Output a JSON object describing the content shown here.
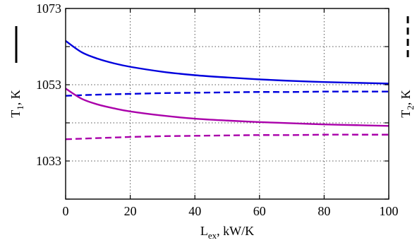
{
  "chart_data": {
    "type": "line",
    "xlabel": {
      "main": "L",
      "sub": "ex",
      "rest": ",  kW/K"
    },
    "ylabel_left": {
      "main": "T",
      "sub": "1",
      "rest": ",  K"
    },
    "ylabel_right": {
      "main": "T",
      "sub": "2",
      "rest": ",  K"
    },
    "xlim": [
      0,
      100
    ],
    "ylim": [
      1023,
      1073
    ],
    "x_ticks": [
      "0",
      "20",
      "40",
      "60",
      "80",
      "100"
    ],
    "y_ticks": [
      "1033",
      "1053",
      "1073"
    ],
    "grid": true,
    "legend": [
      {
        "axis": "left",
        "style": "solid"
      },
      {
        "axis": "right",
        "style": "dashed"
      }
    ],
    "series": [
      {
        "axis": "left",
        "style": "solid",
        "color": "#0000dd",
        "x": [
          0,
          5,
          10,
          15,
          20,
          30,
          40,
          50,
          60,
          70,
          80,
          90,
          100
        ],
        "y": [
          1064.5,
          1061.5,
          1059.8,
          1058.6,
          1057.7,
          1056.4,
          1055.5,
          1054.9,
          1054.4,
          1054.0,
          1053.7,
          1053.5,
          1053.3
        ]
      },
      {
        "axis": "right",
        "style": "dashed",
        "color": "#0000dd",
        "x": [
          0,
          10,
          20,
          30,
          40,
          50,
          60,
          70,
          80,
          90,
          100
        ],
        "y": [
          1050.1,
          1050.4,
          1050.6,
          1050.8,
          1050.9,
          1051.0,
          1051.1,
          1051.1,
          1051.2,
          1051.2,
          1051.2
        ]
      },
      {
        "axis": "left",
        "style": "solid",
        "color": "#aa00aa",
        "x": [
          0,
          5,
          10,
          15,
          20,
          30,
          40,
          50,
          60,
          70,
          80,
          90,
          100
        ],
        "y": [
          1052.0,
          1049.3,
          1047.8,
          1046.8,
          1046.0,
          1044.9,
          1044.1,
          1043.6,
          1043.2,
          1042.9,
          1042.6,
          1042.4,
          1042.2
        ]
      },
      {
        "axis": "right",
        "style": "dashed",
        "color": "#aa00aa",
        "x": [
          0,
          10,
          20,
          30,
          40,
          50,
          60,
          70,
          80,
          90,
          100
        ],
        "y": [
          1038.7,
          1039.0,
          1039.3,
          1039.5,
          1039.6,
          1039.7,
          1039.8,
          1039.8,
          1039.9,
          1039.9,
          1039.9
        ]
      }
    ]
  }
}
